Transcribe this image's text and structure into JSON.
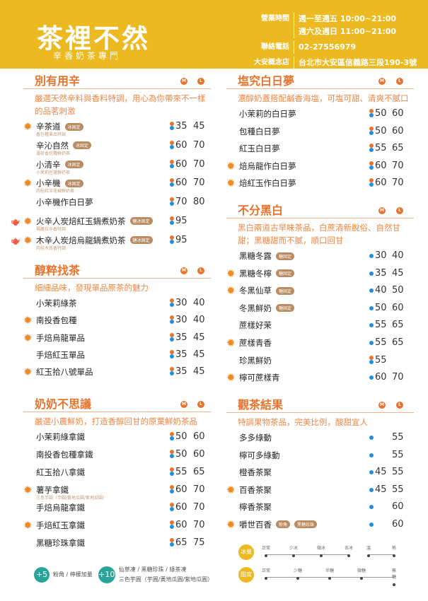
{
  "header": {
    "logo": "茶裡不然",
    "subtitle": "辛香奶茶專門",
    "info": [
      {
        "label": "營業時間",
        "value": "週一至週五 10:00~21:00"
      },
      {
        "label": "",
        "value": "週六及週日 11:00~21:00"
      },
      {
        "label": "聯絡電話",
        "value": "02-27556979"
      },
      {
        "label": "大安概念店",
        "value": "台北市大安區信義路三段190-3號1樓"
      }
    ]
  },
  "size_labels": {
    "m": "M",
    "l": "L"
  },
  "colors": {
    "header": "#EDB920",
    "accent": "#E8732C",
    "tag": "#B98B5F",
    "teal": "#2AA39A",
    "hot": "#E8732C",
    "cold": "#1E90E0"
  },
  "sections": [
    {
      "title": "別有用辛",
      "desc": "嚴選天然辛料與香料特調，用心為你帶來不一樣的品茗刺激",
      "items": [
        {
          "name": "辛茶道",
          "sub": "香包種單品特調",
          "tags": [
            "冰固定"
          ],
          "star": true,
          "hot": true,
          "cold": true,
          "m": "35",
          "l": "45"
        },
        {
          "name": "辛沁自然",
          "sub": "薄荷香包種鮮奶茶",
          "tags": [
            "冰固定"
          ],
          "hot": true,
          "cold": true,
          "m": "60",
          "l": "70"
        },
        {
          "name": "小清辛",
          "sub": "小茉莉豆蔻鮮奶茶",
          "tags": [
            "冰固定"
          ],
          "hot": true,
          "cold": true,
          "m": "60",
          "l": "70"
        },
        {
          "name": "小辛機",
          "sub": "肉桂紅玉花椒鮮奶茶",
          "tags": [
            "冰固定"
          ],
          "star": true,
          "hot": true,
          "cold": true,
          "m": "60",
          "l": "70"
        },
        {
          "name": "小辛機作白日夢",
          "hot": true,
          "cold": true,
          "m": "70",
          "l": "80"
        },
        {
          "name": "火辛人炭焙紅玉鍋煮奶茶",
          "sub": "瑪薩拉辛香特調",
          "tags": [
            "糖冰固定"
          ],
          "star": true,
          "cup": true,
          "hot": true,
          "cold": true,
          "m": "95"
        },
        {
          "name": "木辛人炭焙烏龍鍋煮奶茶",
          "sub": "肉桂木質香特調",
          "tags": [
            "糖冰固定"
          ],
          "star": true,
          "cup": true,
          "hot": true,
          "cold": true,
          "m": "95"
        }
      ]
    },
    {
      "title": "醇粹找茶",
      "desc": "細細品味，發現單品原茶的魅力",
      "items": [
        {
          "name": "小茉莉綠茶",
          "hot": true,
          "cold": true,
          "m": "30",
          "l": "40"
        },
        {
          "name": "南投香包種",
          "star": true,
          "hot": true,
          "cold": true,
          "m": "30",
          "l": "40"
        },
        {
          "name": "手焙烏龍單品",
          "star": true,
          "hot": true,
          "cold": true,
          "m": "35",
          "l": "45"
        },
        {
          "name": "手焙紅玉單品",
          "hot": true,
          "cold": true,
          "m": "35",
          "l": "45"
        },
        {
          "name": "紅玉拾八號單品",
          "star": true,
          "hot": true,
          "cold": true,
          "m": "35",
          "l": "45"
        }
      ]
    },
    {
      "title": "奶奶不思議",
      "desc": "嚴選小農鮮奶，打造香醇回甘的原葉鮮奶茶品",
      "items": [
        {
          "name": "小茉莉綠拿鐵",
          "hot": true,
          "cold": true,
          "m": "50",
          "l": "60"
        },
        {
          "name": "南投香包種拿鐵",
          "hot": true,
          "cold": true,
          "m": "50",
          "l": "60"
        },
        {
          "name": "紅玉拾八拿鐵",
          "hot": true,
          "cold": true,
          "m": "55",
          "l": "65"
        },
        {
          "name": "薯芋拿鐵",
          "sub": "三色芋圓（芋圓/黃地瓜圓/紫地瓜圓）",
          "star": true,
          "hot": true,
          "cold": true,
          "m": "60",
          "l": "70"
        },
        {
          "name": "手焙烏龍拿鐵",
          "hot": true,
          "cold": true,
          "m": "60",
          "l": "70"
        },
        {
          "name": "手焙紅玉拿鐵",
          "star": true,
          "hot": true,
          "cold": true,
          "m": "60",
          "l": "70"
        },
        {
          "name": "黑糖珍珠拿鐵",
          "hot": true,
          "cold": true,
          "m": "65",
          "l": "75"
        }
      ]
    },
    {
      "title": "塩究白日夢",
      "desc": "濃醇奶蓋搭配鹹香海塩，可塩可甜、清爽不膩口",
      "items": [
        {
          "name": "小茉莉的白日夢",
          "hot": true,
          "cold": true,
          "m": "50",
          "l": "60"
        },
        {
          "name": "包種白日夢",
          "hot": true,
          "cold": true,
          "m": "50",
          "l": "60"
        },
        {
          "name": "紅玉白日夢",
          "hot": true,
          "cold": true,
          "m": "55",
          "l": "65"
        },
        {
          "name": "焙烏龍作白日夢",
          "star": true,
          "hot": true,
          "cold": true,
          "m": "60",
          "l": "70"
        },
        {
          "name": "焙紅玉作白日夢",
          "star": true,
          "hot": true,
          "cold": true,
          "m": "60",
          "l": "70"
        }
      ]
    },
    {
      "title": "不分黑白",
      "desc": "黑白兩道古早味茶品，白蔗清新脫俗、自然甘甜；黑糖甜而不膩，順口回甘",
      "items": [
        {
          "name": "黑糖冬露",
          "tags": [
            "糖固定"
          ],
          "cold": true,
          "m": "30",
          "l": "40"
        },
        {
          "name": "黑糖冬檸",
          "tags": [
            "糖固定"
          ],
          "star": true,
          "cold": true,
          "m": "35",
          "l": "45"
        },
        {
          "name": "冬黑仙草",
          "tags": [
            "糖固定"
          ],
          "star": true,
          "cold": true,
          "m": "40",
          "l": "50"
        },
        {
          "name": "冬黑鮮奶",
          "tags": [
            "糖固定"
          ],
          "cold": true,
          "m": "50",
          "l": "60"
        },
        {
          "name": "蔗樣好茉",
          "cold": true,
          "m": "55",
          "l": "65"
        },
        {
          "name": "蔗樣青香",
          "star": true,
          "cold": true,
          "m": "55",
          "l": "65"
        },
        {
          "name": "珍黑鮮奶",
          "hot": true,
          "cold": true,
          "m": "55"
        },
        {
          "name": "檸可蔗樣青",
          "star": true,
          "cold": true,
          "m": "60",
          "l": "70"
        }
      ]
    },
    {
      "title": "觀茶結果",
      "desc": "特調果物茶品，完美比例，酸甜宜人",
      "items": [
        {
          "name": "多多綠動",
          "cold": true,
          "l": "55"
        },
        {
          "name": "檸可多綠動",
          "cold": true,
          "l": "55"
        },
        {
          "name": "橙香茶聚",
          "cold": true,
          "m": "45",
          "l": "55"
        },
        {
          "name": "百香茶聚",
          "star": true,
          "cold": true,
          "m": "45",
          "l": "55"
        },
        {
          "name": "檸香茶聚",
          "cold": true,
          "l": "60"
        },
        {
          "name": "嚼世百香",
          "tags": [
            "粉角",
            "黑糖珍珠"
          ],
          "star": true,
          "cold": true,
          "l": "60"
        }
      ]
    }
  ],
  "addons": [
    {
      "price": "+5",
      "text": "粉角 / 檸檬加量"
    },
    {
      "price": "+10",
      "text": "仙草凍 / 黑糖珍珠 / 綠茶凍",
      "text2": "三色芋圓（芋圓/黃地瓜圓/紫地瓜圓）"
    }
  ],
  "legend": {
    "ice": {
      "label": "冰量",
      "levels": [
        "正常",
        "少冰",
        "微冰",
        "去冰",
        "溫",
        "熱"
      ]
    },
    "sugar": {
      "label": "甜度",
      "levels": [
        "正常",
        "少糖",
        "半糖",
        "微糖",
        "無糖"
      ]
    }
  }
}
